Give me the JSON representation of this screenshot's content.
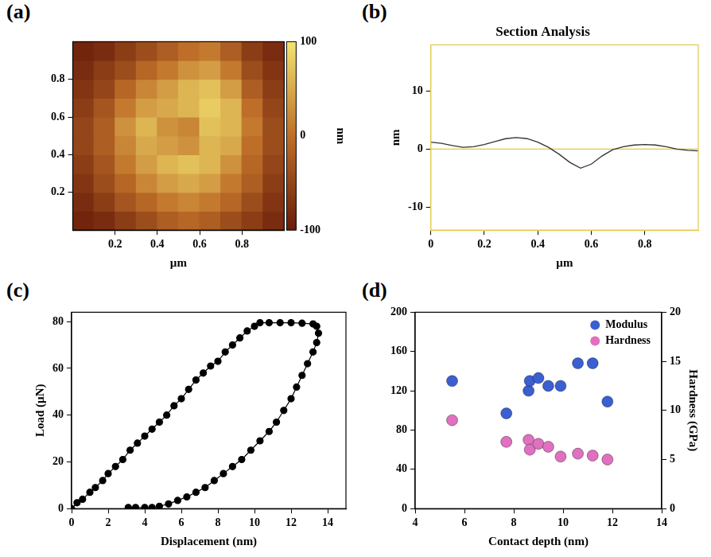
{
  "chart_data": [
    {
      "panel": "(a)",
      "type": "heatmap",
      "x_label": "µm",
      "x": [
        0.05,
        0.15,
        0.25,
        0.35,
        0.45,
        0.55,
        0.65,
        0.75,
        0.85,
        0.95
      ],
      "y": [
        0.05,
        0.15,
        0.25,
        0.35,
        0.45,
        0.55,
        0.65,
        0.75,
        0.85,
        0.95
      ],
      "cells": [
        [
          -90,
          -80,
          -60,
          -40,
          -20,
          -10,
          -20,
          -40,
          -60,
          -80
        ],
        [
          -80,
          -60,
          -30,
          -10,
          10,
          20,
          10,
          -10,
          -40,
          -70
        ],
        [
          -70,
          -40,
          -10,
          20,
          40,
          50,
          40,
          10,
          -20,
          -60
        ],
        [
          -60,
          -30,
          10,
          40,
          60,
          70,
          60,
          30,
          -10,
          -50
        ],
        [
          -50,
          -20,
          20,
          50,
          40,
          30,
          60,
          50,
          0,
          -40
        ],
        [
          -50,
          -20,
          30,
          60,
          30,
          20,
          70,
          60,
          10,
          -40
        ],
        [
          -60,
          -30,
          10,
          40,
          50,
          60,
          80,
          60,
          0,
          -50
        ],
        [
          -70,
          -50,
          -10,
          20,
          40,
          60,
          70,
          40,
          -20,
          -60
        ],
        [
          -80,
          -60,
          -40,
          -10,
          10,
          30,
          40,
          10,
          -40,
          -70
        ],
        [
          -90,
          -80,
          -60,
          -40,
          -20,
          0,
          10,
          -20,
          -60,
          -80
        ]
      ],
      "xlim": [
        0,
        1
      ],
      "ylim": [
        0,
        1
      ],
      "xticks": [
        0.2,
        0.4,
        0.6,
        0.8
      ],
      "yticks": [
        0.2,
        0.4,
        0.6,
        0.8
      ],
      "colorbar": {
        "label": "nm",
        "range": [
          -100,
          100
        ],
        "ticks": [
          -100,
          0,
          100
        ]
      }
    },
    {
      "panel": "(b)",
      "type": "line",
      "title": "Section Analysis",
      "x_label": "µm",
      "y_label": "nm",
      "x": [
        0,
        0.04,
        0.08,
        0.12,
        0.16,
        0.2,
        0.24,
        0.28,
        0.32,
        0.36,
        0.4,
        0.44,
        0.48,
        0.52,
        0.56,
        0.6,
        0.64,
        0.68,
        0.72,
        0.76,
        0.8,
        0.84,
        0.88,
        0.92,
        0.96,
        1.0
      ],
      "values": [
        1.2,
        1.0,
        0.6,
        0.3,
        0.4,
        0.8,
        1.3,
        1.8,
        2.0,
        1.8,
        1.2,
        0.3,
        -0.9,
        -2.3,
        -3.3,
        -2.6,
        -1.2,
        -0.1,
        0.4,
        0.7,
        0.8,
        0.7,
        0.4,
        0.0,
        -0.2,
        -0.3
      ],
      "color": "#333333",
      "xlim": [
        0,
        1
      ],
      "ylim": [
        -14,
        18
      ],
      "xticks": [
        0,
        0.2,
        0.4,
        0.6,
        0.8
      ],
      "yticks": [
        -10,
        0,
        10
      ]
    },
    {
      "panel": "(c)",
      "type": "scatter",
      "x_label": "Displacement (nm)",
      "y_label": "Load (µN)",
      "x": [
        0,
        0.3,
        0.6,
        1,
        1.3,
        1.7,
        2,
        2.4,
        2.8,
        3.2,
        3.6,
        4,
        4.4,
        4.8,
        5.2,
        5.6,
        6,
        6.4,
        6.8,
        7.2,
        7.6,
        8,
        8.4,
        8.8,
        9.2,
        9.6,
        10,
        10.3,
        10.8,
        11.4,
        12,
        12.6,
        13.2,
        13.4,
        13.5,
        13.4,
        13.2,
        12.9,
        12.6,
        12.3,
        12,
        11.6,
        11.2,
        10.8,
        10.3,
        9.8,
        9.3,
        8.8,
        8.3,
        7.8,
        7.3,
        6.8,
        6.3,
        5.8,
        5.3,
        4.8,
        4.4,
        4,
        3.5,
        3.1
      ],
      "values": [
        0,
        2.5,
        4,
        7,
        9,
        12,
        15,
        18,
        21,
        25,
        28,
        31,
        34,
        37,
        40,
        44,
        47,
        51,
        55,
        58,
        61,
        63,
        67,
        70,
        73,
        76,
        78,
        79.5,
        79.5,
        79.5,
        79.5,
        79.3,
        79,
        78,
        75,
        71,
        67,
        62,
        57,
        52,
        47,
        42,
        37,
        33,
        29,
        25,
        21,
        18,
        15,
        12,
        9,
        7,
        5,
        3.5,
        2,
        1,
        0.5,
        0.5,
        0.5,
        0.5
      ],
      "color": "#000000",
      "marker": "circle",
      "line_style": "solid",
      "xlim": [
        0,
        15
      ],
      "ylim": [
        0,
        84
      ],
      "xticks": [
        0,
        2,
        4,
        6,
        8,
        10,
        12,
        14
      ],
      "yticks": [
        0,
        20,
        40,
        60,
        80
      ]
    },
    {
      "panel": "(d)",
      "type": "scatter",
      "x_label": "Contact depth (nm)",
      "y2_label": "Hardness (GPa)",
      "legend": "upper right",
      "series": [
        {
          "name": "Modulus",
          "color": "#3b5fd0",
          "marker": "circle",
          "x": [
            5.5,
            7.7,
            8.6,
            8.65,
            9.0,
            9.4,
            9.9,
            10.6,
            11.2,
            11.8
          ],
          "values": [
            130,
            97,
            120,
            130,
            133,
            125,
            125,
            148,
            148,
            109
          ]
        },
        {
          "name": "Hardness",
          "color": "#e070c0",
          "marker": "circle",
          "axis": "y2",
          "x": [
            5.5,
            7.7,
            8.6,
            8.65,
            9.0,
            9.4,
            9.9,
            10.6,
            11.2,
            11.8
          ],
          "values": [
            9.0,
            6.8,
            7.0,
            6.0,
            6.6,
            6.3,
            5.3,
            5.6,
            5.4,
            5.0
          ]
        }
      ],
      "xlim": [
        4,
        14
      ],
      "ylim": [
        0,
        200
      ],
      "y2lim": [
        0,
        20
      ],
      "xticks": [
        4,
        6,
        8,
        10,
        12,
        14
      ],
      "yticks": [
        0,
        40,
        80,
        120,
        160,
        200
      ],
      "y2ticks": [
        0,
        5,
        10,
        15,
        20
      ]
    }
  ]
}
